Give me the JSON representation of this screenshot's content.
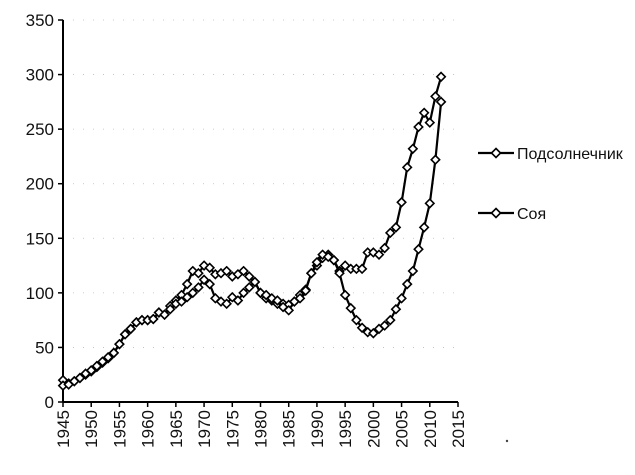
{
  "chart_data": {
    "type": "line",
    "title": "",
    "xlabel": "",
    "ylabel": "",
    "xlim": [
      1945,
      2015
    ],
    "ylim": [
      0,
      350
    ],
    "x_ticks": [
      "1945",
      "1950",
      "1955",
      "1960",
      "1965",
      "1970",
      "1975",
      "1980",
      "1985",
      "1990",
      "1995",
      "2000",
      "2005",
      "2010",
      "2015"
    ],
    "y_ticks": [
      "0",
      "50",
      "100",
      "150",
      "200",
      "250",
      "300",
      "350"
    ],
    "legend_position": "right",
    "grid": "faint dotted",
    "marker": "diamond",
    "colors": {
      "line": "#000000",
      "marker_fill": "#ffffff",
      "axis": "#000000"
    },
    "series": [
      {
        "name": "Подсолнечник",
        "x": [
          1945,
          1946,
          1947,
          1948,
          1949,
          1950,
          1951,
          1952,
          1953,
          1954,
          1955,
          1956,
          1957,
          1958,
          1959,
          1960,
          1961,
          1962,
          1963,
          1964,
          1965,
          1966,
          1967,
          1968,
          1969,
          1970,
          1971,
          1972,
          1973,
          1974,
          1975,
          1976,
          1977,
          1978,
          1979,
          1980,
          1981,
          1982,
          1983,
          1984,
          1985,
          1986,
          1987,
          1988,
          1989,
          1990,
          1991,
          1992,
          1993,
          1994,
          1995,
          1996,
          1997,
          1998,
          1999,
          2000,
          2001,
          2002,
          2003,
          2004,
          2005,
          2006,
          2007,
          2008,
          2009,
          2010,
          2011,
          2012
        ],
        "values": [
          20,
          17,
          19,
          22,
          25,
          28,
          32,
          36,
          40,
          45,
          53,
          62,
          67,
          73,
          75,
          75,
          76,
          82,
          80,
          88,
          93,
          98,
          108,
          120,
          118,
          125,
          123,
          117,
          118,
          120,
          115,
          117,
          120,
          115,
          110,
          100,
          95,
          93,
          90,
          90,
          89,
          92,
          98,
          103,
          118,
          125,
          132,
          135,
          130,
          120,
          125,
          122,
          122,
          122,
          137,
          137,
          135,
          141,
          155,
          160,
          183,
          215,
          232,
          252,
          265,
          256,
          280,
          298
        ]
      },
      {
        "name": "Соя",
        "x": [
          1945,
          1946,
          1947,
          1948,
          1949,
          1950,
          1951,
          1952,
          1953,
          1954,
          1955,
          1956,
          1957,
          1958,
          1959,
          1960,
          1961,
          1962,
          1963,
          1964,
          1965,
          1966,
          1967,
          1968,
          1969,
          1970,
          1971,
          1972,
          1973,
          1974,
          1975,
          1976,
          1977,
          1978,
          1979,
          1980,
          1981,
          1982,
          1983,
          1984,
          1985,
          1986,
          1987,
          1988,
          1989,
          1990,
          1991,
          1992,
          1993,
          1994,
          1995,
          1996,
          1997,
          1998,
          1999,
          2000,
          2001,
          2002,
          2003,
          2004,
          2005,
          2006,
          2007,
          2008,
          2009,
          2010,
          2011,
          2012
        ],
        "values": [
          15,
          16,
          19,
          22,
          26,
          29,
          33,
          37,
          41,
          45,
          53,
          62,
          67,
          73,
          75,
          75,
          76,
          82,
          80,
          85,
          90,
          92,
          96,
          100,
          105,
          112,
          108,
          95,
          92,
          90,
          96,
          93,
          100,
          105,
          110,
          100,
          98,
          95,
          93,
          87,
          84,
          92,
          95,
          102,
          118,
          128,
          135,
          133,
          130,
          118,
          98,
          86,
          75,
          68,
          64,
          63,
          67,
          70,
          75,
          85,
          95,
          108,
          120,
          140,
          160,
          182,
          222,
          275
        ]
      }
    ]
  }
}
